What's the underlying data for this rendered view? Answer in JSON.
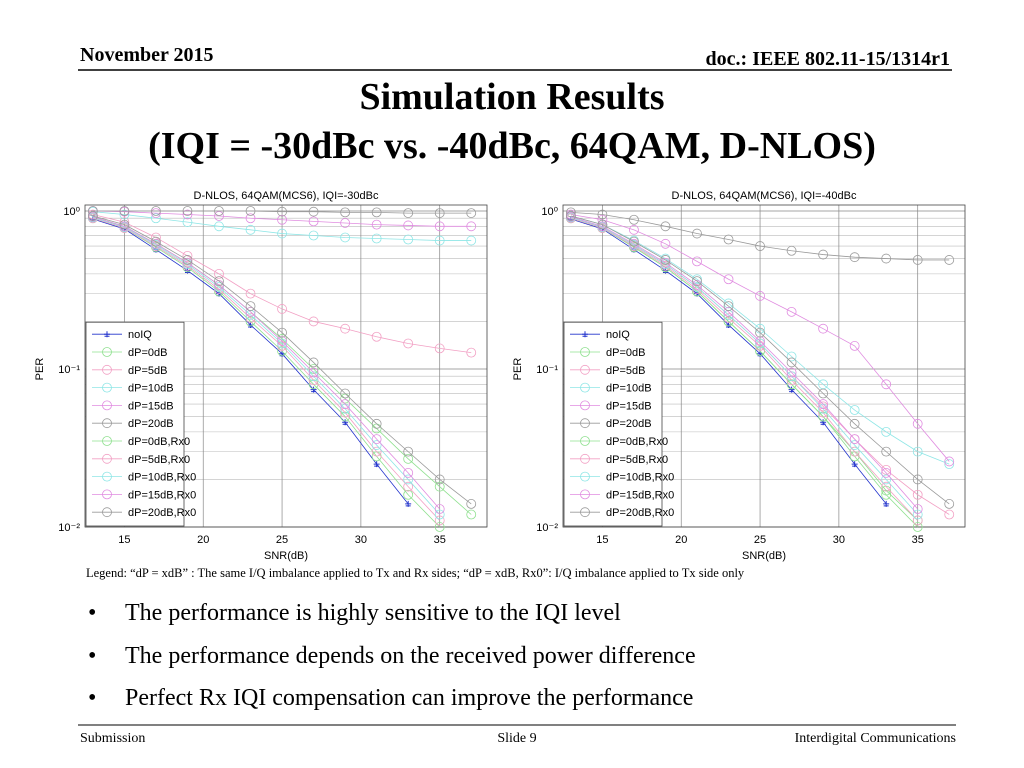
{
  "header": {
    "date": "November 2015",
    "doc": "doc.: IEEE 802.11-15/1314r1"
  },
  "title": [
    "Simulation Results",
    "(IQI = -30dBc vs. -40dBc, 64QAM, D-NLOS)"
  ],
  "chart_data": [
    {
      "type": "line",
      "title": "D-NLOS, 64QAM(MCS6), IQI=-30dBc",
      "x_label": "SNR(dB)",
      "y_label": "PER",
      "x": [
        13,
        15,
        17,
        19,
        21,
        23,
        25,
        27,
        29,
        31,
        33,
        35,
        37
      ],
      "xlim": [
        12.5,
        38
      ],
      "xticks": [
        15,
        20,
        25,
        30,
        35
      ],
      "ylim": [
        0.01,
        1
      ],
      "log_y": true,
      "grid": true,
      "yticks": [
        {
          "value": 0.01,
          "label": "10⁻²"
        },
        {
          "value": 0.1,
          "label": "10⁻¹"
        },
        {
          "value": 1,
          "label": "10⁰"
        }
      ],
      "yticks_minor": [
        0.02,
        0.03,
        0.04,
        0.05,
        0.06,
        0.07,
        0.08,
        0.09,
        0.2,
        0.3,
        0.4,
        0.5,
        0.6,
        0.7,
        0.8,
        0.9
      ],
      "legend": "lower left",
      "series": [
        {
          "name": "noIQ",
          "color": "#2233cc",
          "marker": "plus",
          "values": [
            0.89,
            0.77,
            0.57,
            0.42,
            0.3,
            0.19,
            0.125,
            0.074,
            0.046,
            0.025,
            0.014,
            null,
            null
          ]
        },
        {
          "name": "dP=0dB",
          "color": "#8fe08f",
          "marker": "circle",
          "values": [
            0.92,
            0.8,
            0.62,
            0.47,
            0.34,
            0.23,
            0.155,
            0.1,
            0.065,
            0.042,
            0.027,
            0.018,
            0.012
          ]
        },
        {
          "name": "dP=5dB",
          "color": "#f2a0c4",
          "marker": "circle",
          "values": [
            0.95,
            0.85,
            0.68,
            0.52,
            0.4,
            0.3,
            0.24,
            0.2,
            0.18,
            0.16,
            0.145,
            0.135,
            0.127
          ]
        },
        {
          "name": "dP=10dB",
          "color": "#8fe6e6",
          "marker": "circle",
          "values": [
            0.99,
            0.95,
            0.9,
            0.85,
            0.8,
            0.76,
            0.72,
            0.7,
            0.68,
            0.67,
            0.66,
            0.65,
            0.65
          ]
        },
        {
          "name": "dP=15dB",
          "color": "#e08ce0",
          "marker": "circle",
          "values": [
            1,
            0.99,
            0.97,
            0.95,
            0.93,
            0.9,
            0.88,
            0.86,
            0.84,
            0.82,
            0.81,
            0.8,
            0.8
          ]
        },
        {
          "name": "dP=20dB",
          "color": "#9a9a9a",
          "marker": "circle",
          "values": [
            1,
            1,
            1,
            1,
            1,
            1,
            0.99,
            0.99,
            0.98,
            0.98,
            0.97,
            0.97,
            0.97
          ]
        },
        {
          "name": "dP=0dB,Rx0",
          "color": "#8fe08f",
          "marker": "circle",
          "values": [
            0.9,
            0.78,
            0.59,
            0.44,
            0.31,
            0.2,
            0.13,
            0.08,
            0.05,
            0.028,
            0.016,
            0.01,
            null
          ]
        },
        {
          "name": "dP=5dB,Rx0",
          "color": "#f2a0c4",
          "marker": "circle",
          "values": [
            0.9,
            0.78,
            0.6,
            0.45,
            0.32,
            0.21,
            0.14,
            0.085,
            0.053,
            0.03,
            0.018,
            0.011,
            null
          ]
        },
        {
          "name": "dP=10dB,Rx0",
          "color": "#8fe6e6",
          "marker": "circle",
          "values": [
            0.91,
            0.79,
            0.61,
            0.46,
            0.33,
            0.22,
            0.145,
            0.09,
            0.056,
            0.033,
            0.02,
            0.012,
            null
          ]
        },
        {
          "name": "dP=15dB,Rx0",
          "color": "#e08ce0",
          "marker": "circle",
          "values": [
            0.92,
            0.8,
            0.62,
            0.47,
            0.34,
            0.23,
            0.15,
            0.095,
            0.06,
            0.036,
            0.022,
            0.013,
            null
          ]
        },
        {
          "name": "dP=20dB,Rx0",
          "color": "#9a9a9a",
          "marker": "circle",
          "values": [
            0.93,
            0.82,
            0.64,
            0.49,
            0.36,
            0.25,
            0.17,
            0.11,
            0.07,
            0.045,
            0.03,
            0.02,
            0.014
          ]
        }
      ]
    },
    {
      "type": "line",
      "title": "D-NLOS, 64QAM(MCS6), IQI=-40dBc",
      "x_label": "SNR(dB)",
      "y_label": "PER",
      "x": [
        13,
        15,
        17,
        19,
        21,
        23,
        25,
        27,
        29,
        31,
        33,
        35,
        37
      ],
      "xlim": [
        12.5,
        38
      ],
      "xticks": [
        15,
        20,
        25,
        30,
        35
      ],
      "ylim": [
        0.01,
        1
      ],
      "log_y": true,
      "grid": true,
      "yticks": [
        {
          "value": 0.01,
          "label": "10⁻²"
        },
        {
          "value": 0.1,
          "label": "10⁻¹"
        },
        {
          "value": 1,
          "label": "10⁰"
        }
      ],
      "yticks_minor": [
        0.02,
        0.03,
        0.04,
        0.05,
        0.06,
        0.07,
        0.08,
        0.09,
        0.2,
        0.3,
        0.4,
        0.5,
        0.6,
        0.7,
        0.8,
        0.9
      ],
      "legend": "lower left",
      "series": [
        {
          "name": "noIQ",
          "color": "#2233cc",
          "marker": "plus",
          "values": [
            0.89,
            0.77,
            0.57,
            0.42,
            0.3,
            0.19,
            0.125,
            0.074,
            0.046,
            0.025,
            0.014,
            null,
            null
          ]
        },
        {
          "name": "dP=0dB",
          "color": "#8fe08f",
          "marker": "circle",
          "values": [
            0.9,
            0.78,
            0.59,
            0.44,
            0.31,
            0.2,
            0.13,
            0.08,
            0.05,
            0.03,
            0.017,
            0.011,
            null
          ]
        },
        {
          "name": "dP=5dB",
          "color": "#f2a0c4",
          "marker": "circle",
          "values": [
            0.91,
            0.79,
            0.61,
            0.46,
            0.33,
            0.22,
            0.145,
            0.09,
            0.058,
            0.036,
            0.023,
            0.016,
            0.012
          ]
        },
        {
          "name": "dP=10dB",
          "color": "#8fe6e6",
          "marker": "circle",
          "values": [
            0.93,
            0.82,
            0.65,
            0.5,
            0.37,
            0.26,
            0.18,
            0.12,
            0.08,
            0.055,
            0.04,
            0.03,
            0.025
          ]
        },
        {
          "name": "dP=15dB",
          "color": "#e08ce0",
          "marker": "circle",
          "values": [
            0.95,
            0.88,
            0.76,
            0.62,
            0.48,
            0.37,
            0.29,
            0.23,
            0.18,
            0.14,
            0.08,
            0.045,
            0.026
          ]
        },
        {
          "name": "dP=20dB",
          "color": "#9a9a9a",
          "marker": "circle",
          "values": [
            0.98,
            0.95,
            0.88,
            0.8,
            0.72,
            0.66,
            0.6,
            0.56,
            0.53,
            0.51,
            0.5,
            0.49,
            0.49
          ]
        },
        {
          "name": "dP=0dB,Rx0",
          "color": "#8fe08f",
          "marker": "circle",
          "values": [
            0.9,
            0.78,
            0.59,
            0.44,
            0.31,
            0.2,
            0.13,
            0.08,
            0.05,
            0.028,
            0.016,
            0.01,
            null
          ]
        },
        {
          "name": "dP=5dB,Rx0",
          "color": "#f2a0c4",
          "marker": "circle",
          "values": [
            0.9,
            0.78,
            0.6,
            0.45,
            0.32,
            0.21,
            0.14,
            0.085,
            0.053,
            0.03,
            0.018,
            0.011,
            null
          ]
        },
        {
          "name": "dP=10dB,Rx0",
          "color": "#8fe6e6",
          "marker": "circle",
          "values": [
            0.91,
            0.79,
            0.61,
            0.46,
            0.33,
            0.22,
            0.145,
            0.09,
            0.056,
            0.033,
            0.02,
            0.012,
            null
          ]
        },
        {
          "name": "dP=15dB,Rx0",
          "color": "#e08ce0",
          "marker": "circle",
          "values": [
            0.92,
            0.8,
            0.62,
            0.47,
            0.34,
            0.23,
            0.15,
            0.095,
            0.06,
            0.036,
            0.022,
            0.013,
            null
          ]
        },
        {
          "name": "dP=20dB,Rx0",
          "color": "#9a9a9a",
          "marker": "circle",
          "values": [
            0.93,
            0.82,
            0.64,
            0.49,
            0.36,
            0.25,
            0.17,
            0.11,
            0.07,
            0.045,
            0.03,
            0.02,
            0.014
          ]
        }
      ]
    }
  ],
  "legend_note": "Legend:  “dP = xdB” : The same I/Q imbalance applied to Tx and Rx sides;  “dP = xdB, Rx0”: I/Q imbalance applied to Tx side only",
  "bullets": [
    "The performance is highly sensitive to the IQI level",
    "The performance depends on the received power difference",
    "Perfect Rx IQI compensation can improve the performance"
  ],
  "footer": {
    "left": "Submission",
    "center": "Slide 9",
    "right": "Interdigital Communications"
  }
}
